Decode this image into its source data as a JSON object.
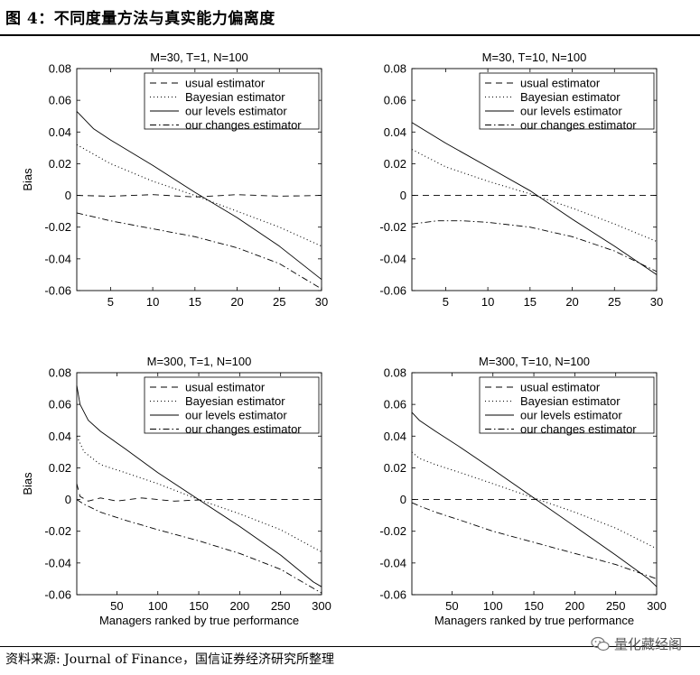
{
  "figure": {
    "title": "图 4：不同度量方法与真实能力偏离度",
    "source": "资料来源: Journal of Finance，国信证券经济研究所整理",
    "watermark": "量化藏经阁"
  },
  "chart_data": [
    {
      "type": "line",
      "title": "M=30, T=1, N=100",
      "xlabel": "",
      "ylabel": "Bias",
      "xlim": [
        1,
        30
      ],
      "ylim": [
        -0.06,
        0.08
      ],
      "xticks": [
        5,
        10,
        15,
        20,
        25,
        30
      ],
      "yticks": [
        -0.06,
        -0.04,
        -0.02,
        0,
        0.02,
        0.04,
        0.06,
        0.08
      ],
      "legend_position": "top-right",
      "series": [
        {
          "name": "usual estimator",
          "style": "dashed",
          "x": [
            1,
            5,
            10,
            15,
            20,
            25,
            30
          ],
          "y": [
            0,
            -0.0005,
            0.0005,
            -0.001,
            0.0005,
            -0.0005,
            0
          ]
        },
        {
          "name": "Bayesian estimator",
          "style": "dotted",
          "x": [
            1,
            5,
            10,
            15,
            20,
            25,
            30
          ],
          "y": [
            0.032,
            0.02,
            0.009,
            0.0,
            -0.01,
            -0.02,
            -0.032
          ]
        },
        {
          "name": "our levels estimator",
          "style": "solid",
          "x": [
            1,
            3,
            5,
            10,
            15,
            20,
            25,
            30
          ],
          "y": [
            0.053,
            0.042,
            0.035,
            0.019,
            0.002,
            -0.014,
            -0.032,
            -0.053
          ]
        },
        {
          "name": "our changes estimator",
          "style": "dashdot",
          "x": [
            1,
            5,
            10,
            15,
            20,
            25,
            30
          ],
          "y": [
            -0.011,
            -0.016,
            -0.021,
            -0.026,
            -0.033,
            -0.043,
            -0.059
          ]
        }
      ]
    },
    {
      "type": "line",
      "title": "M=30, T=10, N=100",
      "xlabel": "",
      "ylabel": "",
      "xlim": [
        1,
        30
      ],
      "ylim": [
        -0.06,
        0.08
      ],
      "xticks": [
        5,
        10,
        15,
        20,
        25,
        30
      ],
      "yticks": [
        -0.06,
        -0.04,
        -0.02,
        0,
        0.02,
        0.04,
        0.06,
        0.08
      ],
      "legend_position": "top-right",
      "series": [
        {
          "name": "usual estimator",
          "style": "dashed",
          "x": [
            1,
            10,
            20,
            30
          ],
          "y": [
            0,
            0,
            0,
            0
          ]
        },
        {
          "name": "Bayesian estimator",
          "style": "dotted",
          "x": [
            1,
            5,
            10,
            15,
            20,
            25,
            30
          ],
          "y": [
            0.029,
            0.018,
            0.009,
            0.001,
            -0.008,
            -0.018,
            -0.029
          ]
        },
        {
          "name": "our levels estimator",
          "style": "solid",
          "x": [
            1,
            5,
            10,
            15,
            20,
            25,
            30
          ],
          "y": [
            0.046,
            0.033,
            0.018,
            0.003,
            -0.015,
            -0.032,
            -0.05
          ]
        },
        {
          "name": "our changes estimator",
          "style": "dashdot",
          "x": [
            1,
            4,
            7,
            10,
            15,
            20,
            25,
            30
          ],
          "y": [
            -0.018,
            -0.016,
            -0.016,
            -0.017,
            -0.02,
            -0.026,
            -0.035,
            -0.048
          ]
        }
      ]
    },
    {
      "type": "line",
      "title": "M=300, T=1, N=100",
      "xlabel": "Managers ranked by true performance",
      "ylabel": "Bias",
      "xlim": [
        1,
        300
      ],
      "ylim": [
        -0.06,
        0.08
      ],
      "xticks": [
        50,
        100,
        150,
        200,
        250,
        300
      ],
      "yticks": [
        -0.06,
        -0.04,
        -0.02,
        0,
        0.02,
        0.04,
        0.06,
        0.08
      ],
      "legend_position": "top-right",
      "series": [
        {
          "name": "usual estimator",
          "style": "dashed",
          "x": [
            1,
            5,
            15,
            30,
            50,
            80,
            120,
            160,
            200,
            250,
            300
          ],
          "y": [
            0.01,
            0.002,
            -0.001,
            0.001,
            -0.001,
            0.001,
            -0.001,
            0.0,
            0.0,
            0.0,
            0.0
          ]
        },
        {
          "name": "Bayesian estimator",
          "style": "dotted",
          "x": [
            1,
            10,
            30,
            60,
            100,
            150,
            200,
            250,
            300
          ],
          "y": [
            0.04,
            0.03,
            0.022,
            0.017,
            0.01,
            0.0,
            -0.009,
            -0.019,
            -0.033
          ]
        },
        {
          "name": "our levels estimator",
          "style": "solid",
          "x": [
            1,
            5,
            15,
            30,
            60,
            100,
            150,
            200,
            250,
            290,
            300
          ],
          "y": [
            0.072,
            0.06,
            0.05,
            0.043,
            0.032,
            0.017,
            0.0,
            -0.017,
            -0.035,
            -0.052,
            -0.055
          ]
        },
        {
          "name": "our changes estimator",
          "style": "dashdot",
          "x": [
            1,
            10,
            30,
            60,
            100,
            150,
            200,
            250,
            300
          ],
          "y": [
            0.0,
            -0.003,
            -0.008,
            -0.013,
            -0.019,
            -0.026,
            -0.034,
            -0.044,
            -0.059
          ]
        }
      ]
    },
    {
      "type": "line",
      "title": "M=300, T=10, N=100",
      "xlabel": "Managers ranked by true performance",
      "ylabel": "",
      "xlim": [
        1,
        300
      ],
      "ylim": [
        -0.06,
        0.08
      ],
      "xticks": [
        50,
        100,
        150,
        200,
        250,
        300
      ],
      "yticks": [
        -0.06,
        -0.04,
        -0.02,
        0,
        0.02,
        0.04,
        0.06,
        0.08
      ],
      "legend_position": "top-right",
      "series": [
        {
          "name": "usual estimator",
          "style": "dashed",
          "x": [
            1,
            100,
            200,
            300
          ],
          "y": [
            0,
            0,
            0,
            0
          ]
        },
        {
          "name": "Bayesian estimator",
          "style": "dotted",
          "x": [
            1,
            10,
            30,
            60,
            100,
            150,
            200,
            250,
            300
          ],
          "y": [
            0.03,
            0.026,
            0.022,
            0.017,
            0.01,
            0.001,
            -0.008,
            -0.018,
            -0.031
          ]
        },
        {
          "name": "our levels estimator",
          "style": "solid",
          "x": [
            1,
            10,
            30,
            60,
            100,
            150,
            200,
            250,
            290,
            300
          ],
          "y": [
            0.055,
            0.05,
            0.043,
            0.033,
            0.019,
            0.001,
            -0.017,
            -0.035,
            -0.05,
            -0.055
          ]
        },
        {
          "name": "our changes estimator",
          "style": "dashdot",
          "x": [
            1,
            10,
            30,
            60,
            100,
            150,
            200,
            250,
            300
          ],
          "y": [
            -0.002,
            -0.004,
            -0.008,
            -0.013,
            -0.02,
            -0.027,
            -0.034,
            -0.041,
            -0.05
          ]
        }
      ]
    }
  ]
}
